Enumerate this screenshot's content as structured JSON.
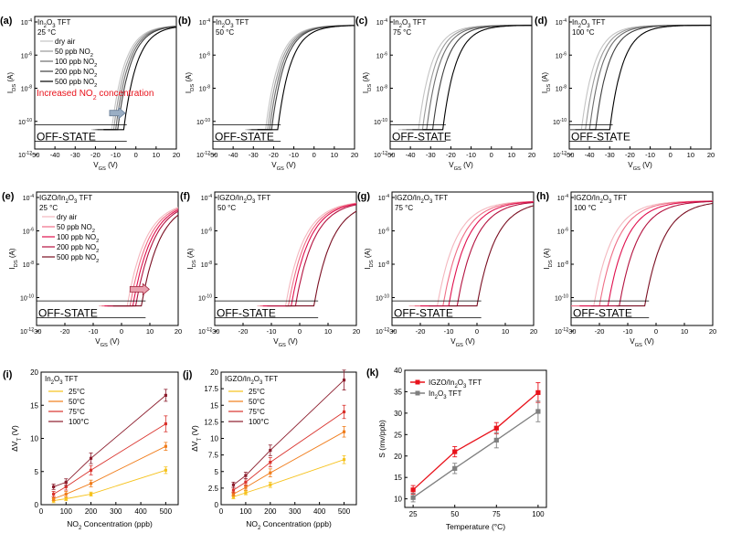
{
  "figure": {
    "transfer_panels": [
      {
        "label": "(a)",
        "device": "In₂O₃ TFT",
        "temp": "25 °C",
        "vt_label_base": -12
      },
      {
        "label": "(b)",
        "device": "In₂O₃ TFT",
        "temp": "50 °C",
        "vt_label_base": -24
      },
      {
        "label": "(c)",
        "device": "In₂O₃ TFT",
        "temp": "75 °C",
        "vt_label_base": -36
      },
      {
        "label": "(d)",
        "device": "In₂O₃ TFT",
        "temp": "100 °C",
        "vt_label_base": -44
      },
      {
        "label": "(e)",
        "device": "IGZO/In₂O₃ TFT",
        "temp": "25 °C",
        "vt_label_base": 2
      },
      {
        "label": "(f)",
        "device": "IGZO/In₂O₃ TFT",
        "temp": "50 °C",
        "vt_label_base": -5
      },
      {
        "label": "(g)",
        "device": "IGZO/In₂O₃ TFT",
        "temp": "75 °C",
        "vt_label_base": -14
      },
      {
        "label": "(h)",
        "device": "IGZO/In₂O₃ TFT",
        "temp": "100 °C",
        "vt_label_base": -22
      }
    ],
    "legend_top": [
      "dry air",
      "50 ppb NO₂",
      "100 ppb NO₂",
      "200 ppb NO₂",
      "500 ppb NO₂"
    ],
    "legend_mid": [
      "dry air",
      "50 ppb NO₂",
      "100 ppb NO₂",
      "200 ppb NO₂",
      "500 ppb NO₂"
    ],
    "annotation": "Increased NO₂ concentration",
    "off_state": "OFF-STATE",
    "ids_label": "I_DS (A)",
    "vgs_label": "V_GS (V)",
    "colors": {
      "gray": [
        "#c4c4c4",
        "#9a9a9a",
        "#6e6e6e",
        "#3e3e3e",
        "#000000"
      ],
      "red": [
        "#f4b8bf",
        "#ef6f87",
        "#e0104e",
        "#b3123f",
        "#7a0f22"
      ],
      "temps": [
        "#f6c21c",
        "#f07d1c",
        "#d9322c",
        "#8b1c2c"
      ],
      "k_red": "#e8121b",
      "k_gray": "#7f7f7f"
    }
  },
  "chart_data": [
    {
      "type": "line",
      "title": "(a) In₂O₃ TFT 25 °C",
      "xlabel": "V_GS (V)",
      "ylabel": "I_DS (A)",
      "xlim": [
        -50,
        20
      ],
      "ylim_log10": [
        -12,
        -4
      ],
      "series_vt": [
        {
          "name": "dry air",
          "vt": -12
        },
        {
          "name": "50 ppb NO₂",
          "vt": -11
        },
        {
          "name": "100 ppb NO₂",
          "vt": -10
        },
        {
          "name": "200 ppb NO₂",
          "vt": -9
        },
        {
          "name": "500 ppb NO₂",
          "vt": -6
        }
      ]
    },
    {
      "type": "line",
      "title": "(b) In₂O₃ TFT 50 °C",
      "xlim": [
        -50,
        20
      ],
      "ylim_log10": [
        -12,
        -4
      ],
      "series_vt": [
        {
          "name": "dry air",
          "vt": -24
        },
        {
          "name": "50 ppb NO₂",
          "vt": -23
        },
        {
          "name": "100 ppb NO₂",
          "vt": -22
        },
        {
          "name": "200 ppb NO₂",
          "vt": -21
        },
        {
          "name": "500 ppb NO₂",
          "vt": -18
        }
      ]
    },
    {
      "type": "line",
      "title": "(c) In₂O₃ TFT 75 °C",
      "xlim": [
        -50,
        20
      ],
      "ylim_log10": [
        -12,
        -4
      ],
      "series_vt": [
        {
          "name": "dry air",
          "vt": -36
        },
        {
          "name": "50 ppb NO₂",
          "vt": -34
        },
        {
          "name": "100 ppb NO₂",
          "vt": -32
        },
        {
          "name": "200 ppb NO₂",
          "vt": -29
        },
        {
          "name": "500 ppb NO₂",
          "vt": -24
        }
      ]
    },
    {
      "type": "line",
      "title": "(d) In₂O₃ TFT 100 °C",
      "xlim": [
        -50,
        20
      ],
      "ylim_log10": [
        -12,
        -4
      ],
      "series_vt": [
        {
          "name": "dry air",
          "vt": -44
        },
        {
          "name": "50 ppb NO₂",
          "vt": -42
        },
        {
          "name": "100 ppb NO₂",
          "vt": -40
        },
        {
          "name": "200 ppb NO₂",
          "vt": -37
        },
        {
          "name": "500 ppb NO₂",
          "vt": -30
        }
      ]
    },
    {
      "type": "line",
      "title": "(e) IGZO/In₂O₃ TFT 25 °C",
      "xlim": [
        -30,
        20
      ],
      "ylim_log10": [
        -12,
        -4
      ],
      "series_vt": [
        {
          "name": "dry air",
          "vt": 2
        },
        {
          "name": "50 ppb NO₂",
          "vt": 3
        },
        {
          "name": "100 ppb NO₂",
          "vt": 4
        },
        {
          "name": "200 ppb NO₂",
          "vt": 5
        },
        {
          "name": "500 ppb NO₂",
          "vt": 7
        }
      ]
    },
    {
      "type": "line",
      "title": "(f) IGZO/In₂O₃ TFT 50 °C",
      "xlim": [
        -30,
        20
      ],
      "ylim_log10": [
        -12,
        -4
      ],
      "series_vt": [
        {
          "name": "dry air",
          "vt": -5
        },
        {
          "name": "50 ppb NO₂",
          "vt": -4
        },
        {
          "name": "100 ppb NO₂",
          "vt": -3
        },
        {
          "name": "200 ppb NO₂",
          "vt": -1.5
        },
        {
          "name": "500 ppb NO₂",
          "vt": 5
        }
      ]
    },
    {
      "type": "line",
      "title": "(g) IGZO/In₂O₃ TFT 75 °C",
      "xlim": [
        -30,
        20
      ],
      "ylim_log10": [
        -12,
        -4
      ],
      "series_vt": [
        {
          "name": "dry air",
          "vt": -14
        },
        {
          "name": "50 ppb NO₂",
          "vt": -12
        },
        {
          "name": "100 ppb NO₂",
          "vt": -10
        },
        {
          "name": "200 ppb NO₂",
          "vt": -7
        },
        {
          "name": "500 ppb NO₂",
          "vt": 0
        }
      ]
    },
    {
      "type": "line",
      "title": "(h) IGZO/In₂O₃ TFT 100 °C",
      "xlim": [
        -30,
        20
      ],
      "ylim_log10": [
        -12,
        -4
      ],
      "series_vt": [
        {
          "name": "dry air",
          "vt": -22
        },
        {
          "name": "50 ppb NO₂",
          "vt": -20
        },
        {
          "name": "100 ppb NO₂",
          "vt": -17
        },
        {
          "name": "200 ppb NO₂",
          "vt": -13
        },
        {
          "name": "500 ppb NO₂",
          "vt": -4
        }
      ]
    },
    {
      "type": "scatter",
      "title": "(i) In₂O₃ TFT",
      "xlabel": "NO₂ Concentration (ppb)",
      "ylabel": "ΔV_T (V)",
      "xlim": [
        0,
        550
      ],
      "ylim": [
        0,
        20
      ],
      "xticks": [
        0,
        100,
        200,
        300,
        400,
        500
      ],
      "yticks": [
        0,
        5,
        10,
        15,
        20
      ],
      "x": [
        50,
        100,
        200,
        500
      ],
      "series": [
        {
          "name": "25°C",
          "values": [
            0.6,
            0.9,
            1.6,
            5.2
          ],
          "err": [
            0.3,
            0.3,
            0.3,
            0.5
          ]
        },
        {
          "name": "50°C",
          "values": [
            0.9,
            1.6,
            3.2,
            8.8
          ],
          "err": [
            0.3,
            0.4,
            0.5,
            0.6
          ]
        },
        {
          "name": "75°C",
          "values": [
            1.6,
            2.7,
            5.2,
            12.2
          ],
          "err": [
            0.4,
            0.5,
            0.7,
            1.2
          ]
        },
        {
          "name": "100°C",
          "values": [
            2.7,
            3.4,
            7.0,
            16.5
          ],
          "err": [
            0.4,
            0.5,
            0.8,
            0.9
          ]
        }
      ]
    },
    {
      "type": "scatter",
      "title": "(j) IGZO/In₂O₃ TFT",
      "xlabel": "NO₂ Concentration (ppb)",
      "ylabel": "ΔV_T (V)",
      "xlim": [
        0,
        550
      ],
      "ylim": [
        0,
        20
      ],
      "xticks": [
        0,
        100,
        200,
        300,
        400,
        500
      ],
      "yticks": [
        0,
        2.5,
        5,
        7.5,
        10,
        12.5,
        15,
        17.5,
        20
      ],
      "x": [
        50,
        100,
        200,
        500
      ],
      "series": [
        {
          "name": "25°C",
          "values": [
            1.2,
            1.8,
            3.0,
            6.8
          ],
          "err": [
            0.3,
            0.3,
            0.4,
            0.6
          ]
        },
        {
          "name": "50°C",
          "values": [
            1.6,
            2.6,
            4.8,
            11.0
          ],
          "err": [
            0.3,
            0.4,
            0.6,
            0.8
          ]
        },
        {
          "name": "75°C",
          "values": [
            2.2,
            3.4,
            6.4,
            14.0
          ],
          "err": [
            0.4,
            0.5,
            0.7,
            1.0
          ]
        },
        {
          "name": "100°C",
          "values": [
            3.0,
            4.4,
            8.2,
            18.8
          ],
          "err": [
            0.4,
            0.5,
            0.8,
            1.5
          ]
        }
      ]
    },
    {
      "type": "line",
      "title": "(k)",
      "xlabel": "Temperature (°C)",
      "ylabel": "S (mv/ppb)",
      "xlim": [
        20,
        105
      ],
      "ylim": [
        8,
        40
      ],
      "xticks": [
        25,
        50,
        75,
        100
      ],
      "yticks": [
        10,
        15,
        20,
        25,
        30,
        35,
        40
      ],
      "x": [
        25,
        50,
        75,
        100
      ],
      "series": [
        {
          "name": "IGZO/In₂O₃ TFT",
          "values": [
            12.1,
            21.0,
            26.5,
            34.8
          ],
          "err": [
            1.0,
            1.2,
            1.3,
            2.3
          ]
        },
        {
          "name": "In₂O₃ TFT",
          "values": [
            10.3,
            17.1,
            23.7,
            30.4
          ],
          "err": [
            1.0,
            1.2,
            1.8,
            2.4
          ]
        }
      ]
    }
  ]
}
